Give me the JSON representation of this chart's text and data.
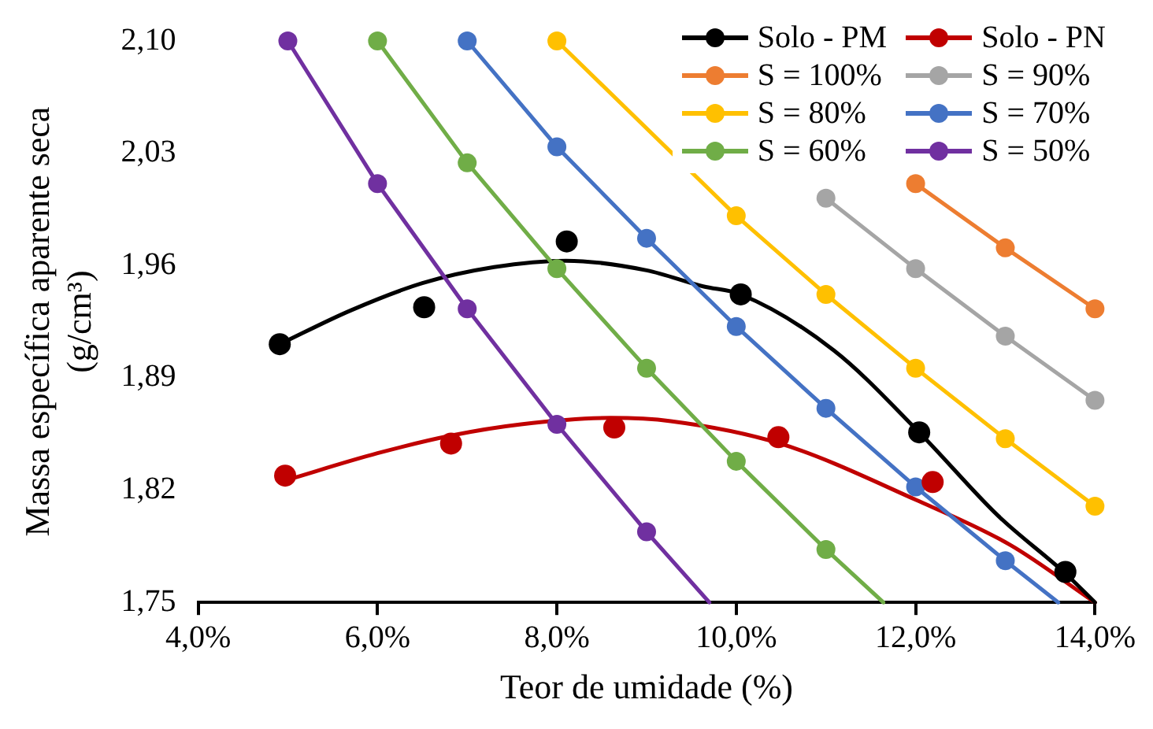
{
  "chart_data": {
    "type": "scatter",
    "xlabel": "Teor de umidade (%)",
    "ylabel": "Massa específica aparente seca (g/cm³)",
    "xlim": [
      4,
      14
    ],
    "xticks": [
      {
        "value": 4,
        "label": "4,0%"
      },
      {
        "value": 6,
        "label": "6,0%"
      },
      {
        "value": 8,
        "label": "8,0%"
      },
      {
        "value": 10,
        "label": "10,0%"
      },
      {
        "value": 12,
        "label": "12,0%"
      },
      {
        "value": 14,
        "label": "14,0%"
      }
    ],
    "ylim": [
      1.75,
      2.1
    ],
    "yticks": [
      {
        "value": 1.75,
        "label": "1,75"
      },
      {
        "value": 1.82,
        "label": "1,82"
      },
      {
        "value": 1.89,
        "label": "1,89"
      },
      {
        "value": 1.96,
        "label": "1,96"
      },
      {
        "value": 2.03,
        "label": "2,03"
      },
      {
        "value": 2.1,
        "label": "2,10"
      }
    ],
    "grid": false,
    "legend": "top right",
    "marker": "circle",
    "line_style": "solid",
    "series": [
      {
        "name": "Solo - PM",
        "type": "scatter",
        "color": "#000000",
        "x": [
          4.91,
          6.52,
          8.11,
          10.05,
          12.04,
          13.67
        ],
        "values": [
          1.911,
          1.934,
          1.975,
          1.942,
          1.856,
          1.769
        ]
      },
      {
        "name": "Solo - PN",
        "type": "scatter",
        "color": "#c00000",
        "x": [
          4.97,
          6.82,
          8.64,
          10.47,
          12.19
        ],
        "values": [
          1.829,
          1.849,
          1.859,
          1.853,
          1.825
        ]
      },
      {
        "name": "S = 100%",
        "type": "line",
        "color": "#ed7d31",
        "x": [
          12,
          13,
          14
        ],
        "values": [
          2.011,
          1.971,
          1.933
        ]
      },
      {
        "name": "S = 90%",
        "type": "line",
        "color": "#a5a5a5",
        "x": [
          11,
          12,
          13,
          14
        ],
        "values": [
          2.002,
          1.958,
          1.916,
          1.876
        ]
      },
      {
        "name": "S = 80%",
        "type": "line",
        "color": "#ffc000",
        "x": [
          8,
          9,
          10,
          11,
          12,
          13,
          14
        ],
        "values": [
          2.1,
          null,
          1.991,
          1.942,
          1.896,
          1.852,
          1.81
        ]
      },
      {
        "name": "S = 70%",
        "type": "line",
        "color": "#4472c4",
        "x": [
          7,
          8,
          9,
          10,
          11,
          12,
          13,
          13.59
        ],
        "values": [
          2.1,
          2.034,
          1.977,
          1.922,
          1.871,
          1.822,
          1.776,
          1.75
        ]
      },
      {
        "name": "S = 60%",
        "type": "line",
        "color": "#70ad47",
        "x": [
          6,
          7,
          8,
          9,
          10,
          11,
          11.64
        ],
        "values": [
          2.1,
          2.024,
          1.958,
          1.896,
          1.838,
          1.783,
          1.75
        ]
      },
      {
        "name": "S = 50%",
        "type": "line",
        "color": "#7030a0",
        "x": [
          5,
          6,
          7,
          8,
          9,
          9.7
        ],
        "values": [
          2.1,
          2.011,
          1.933,
          1.861,
          1.794,
          1.75
        ]
      },
      {
        "type": "line",
        "marker": "none",
        "color": "#000000",
        "x": [
          4.91,
          5.7,
          6.5,
          7.3,
          8.1,
          9.0,
          9.63,
          10.05,
          11.09,
          12.04,
          12.92,
          13.67,
          14
        ],
        "values": [
          1.911,
          1.932,
          1.949,
          1.959,
          1.963,
          1.957,
          1.947,
          1.942,
          1.907,
          1.856,
          1.804,
          1.768,
          1.75
        ]
      },
      {
        "type": "line",
        "marker": "none",
        "color": "#c00000",
        "x": [
          4.97,
          6.0,
          6.82,
          7.6,
          8.6,
          9.27,
          10.49,
          12.0,
          13.05,
          14
        ],
        "values": [
          1.826,
          1.843,
          1.854,
          1.861,
          1.865,
          1.863,
          1.849,
          1.814,
          1.786,
          1.75
        ]
      }
    ]
  }
}
